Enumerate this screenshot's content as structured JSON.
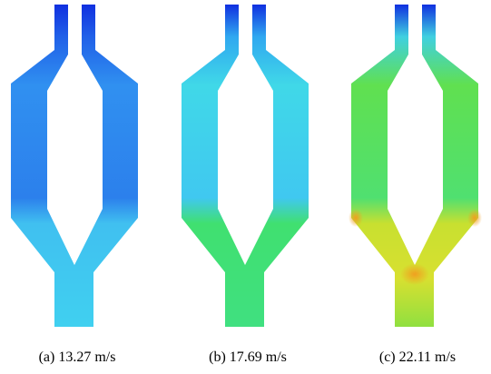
{
  "panels": [
    {
      "caption": "(a) 13.27 m/s"
    },
    {
      "caption": "(b) 17.69 m/s"
    },
    {
      "caption": "(c) 22.11 m/s"
    }
  ]
}
